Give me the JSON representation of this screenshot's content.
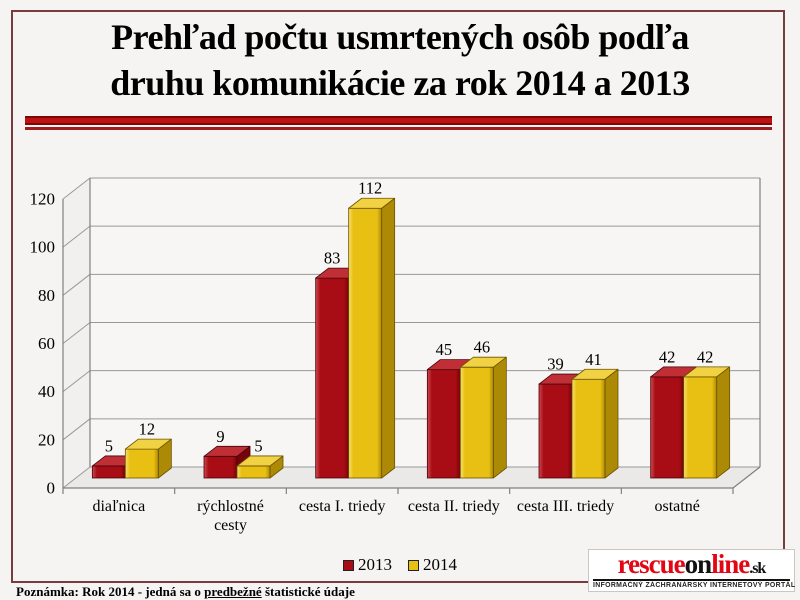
{
  "title": {
    "line1": "Prehľad počtu usmrtených osôb podľa",
    "line2": "druhu komunikácie za rok 2014 a 2013"
  },
  "chart_data": {
    "type": "bar",
    "view": "3d",
    "title": "Prehľad počtu usmrtených osôb podľa druhu komunikácie za rok 2014 a 2013",
    "categories": [
      "diaľnica",
      "rýchlostné cesty",
      "cesta I. triedy",
      "cesta II. triedy",
      "cesta III. triedy",
      "ostatné"
    ],
    "category_label_lines": [
      [
        "diaľnica"
      ],
      [
        "rýchlostné",
        "cesty"
      ],
      [
        "cesta I. triedy"
      ],
      [
        "cesta II. triedy"
      ],
      [
        "cesta III. triedy"
      ],
      [
        "ostatné"
      ]
    ],
    "series": [
      {
        "name": "2013",
        "values": [
          5,
          9,
          83,
          45,
          39,
          42
        ],
        "color": "#A80C15",
        "side_color": "#750309",
        "top_color": "#C02F36",
        "highlight": "#CE4A4F",
        "edge_color": "#45040B"
      },
      {
        "name": "2014",
        "values": [
          12,
          5,
          112,
          46,
          41,
          42
        ],
        "color": "#E8C013",
        "side_color": "#AD8A06",
        "top_color": "#F1D245",
        "highlight": "#F7E070",
        "edge_color": "#6B5300"
      }
    ],
    "ylim": [
      0,
      120
    ],
    "ytick_step": 20,
    "yticks": [
      0,
      20,
      40,
      60,
      80,
      100,
      120
    ],
    "grid": true,
    "legend_position": "bottom",
    "xlabel": "",
    "ylabel": ""
  },
  "footnote": {
    "prefix": "Poznámka: Rok 2014 - jedná sa o ",
    "underlined": "predbežné",
    "suffix": " štatistické údaje"
  },
  "logo": {
    "segments": [
      {
        "text": "rescue",
        "color": "#E30613"
      },
      {
        "text": "on",
        "color": "#111111"
      },
      {
        "text": "line",
        "color": "#E30613"
      },
      {
        "text": ".sk",
        "color": "#111111"
      }
    ],
    "tagline": "INFORMAČNÝ ZÁCHRANÁRSKY INTERNETOVÝ PORTÁL"
  },
  "colors": {
    "page_bg": "#F5F4F2",
    "frame": "#7A3B40",
    "divider": "#BE1212",
    "grid": "#999999",
    "axis": "#808080"
  }
}
